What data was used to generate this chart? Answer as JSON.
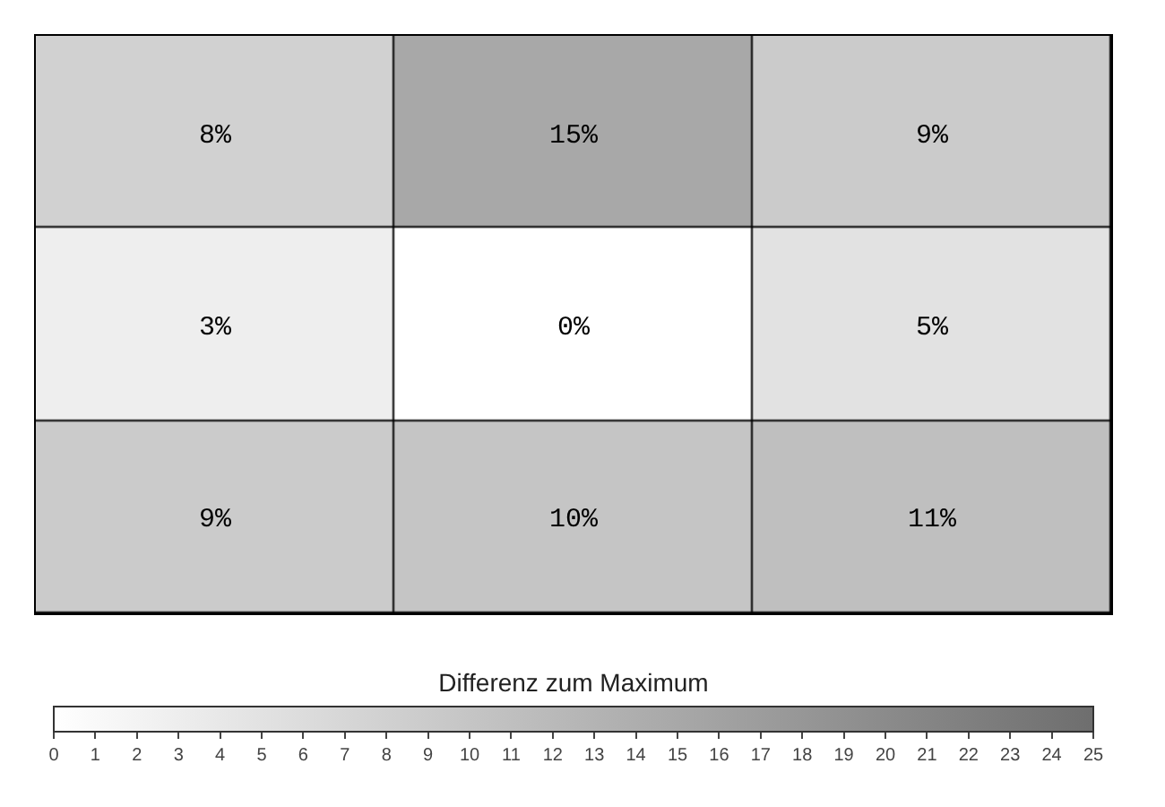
{
  "chart_data": {
    "type": "heatmap",
    "categories": [
      null,
      null,
      null
    ],
    "y_categories": [
      null,
      null,
      null
    ],
    "cells": [
      [
        8,
        15,
        9
      ],
      [
        3,
        0,
        5
      ],
      [
        9,
        10,
        11
      ]
    ],
    "cell_labels": [
      [
        "8%",
        "15%",
        "9%"
      ],
      [
        "3%",
        "0%",
        "5%"
      ],
      [
        "9%",
        "10%",
        "11%"
      ]
    ],
    "clim": [
      0,
      25
    ],
    "cticks": [
      0,
      1,
      2,
      3,
      4,
      5,
      6,
      7,
      8,
      9,
      10,
      11,
      12,
      13,
      14,
      15,
      16,
      17,
      18,
      19,
      20,
      21,
      22,
      23,
      24,
      25
    ],
    "clabel": "Differenz zum Maximum"
  }
}
